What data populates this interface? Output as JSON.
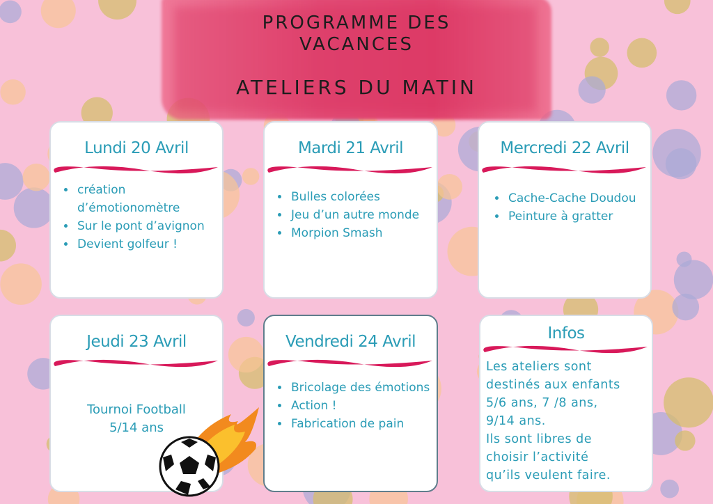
{
  "header": {
    "title_line1": "PROGRAMME DES",
    "title_line2": "VACANCES",
    "subtitle": "ATELIERS DU MATIN"
  },
  "colors": {
    "background": "#f8c1d9",
    "text": "#2a9cb6",
    "accent_wave": "#d8195a",
    "brush": "#e24a74"
  },
  "days": [
    {
      "title": "Lundi 20 Avril",
      "items": [
        "création d’émotionomètre",
        "Sur le pont d’avignon",
        "Devient golfeur !"
      ]
    },
    {
      "title": "Mardi 21 Avril",
      "items": [
        "Bulles colorées",
        "Jeu d’un autre monde",
        "Morpion Smash"
      ]
    },
    {
      "title": "Mercredi 22 Avril",
      "items": [
        "Cache-Cache Doudou",
        "Peinture à gratter"
      ]
    },
    {
      "title": "Jeudi 23 Avril",
      "text_line1": "Tournoi Football",
      "text_line2": "5/14 ans",
      "icon": "soccer-ball-fire-icon"
    },
    {
      "title": "Vendredi 24 Avril",
      "items": [
        "Bricolage des émotions",
        "Action !",
        "Fabrication de pain"
      ]
    }
  ],
  "infos": {
    "title": "Infos",
    "lines": [
      "Les ateliers sont",
      "destinés aux enfants",
      "5/6 ans, 7 /8 ans,",
      "9/14 ans.",
      "Ils sont libres de",
      "choisir l’activité",
      "qu’ils veulent faire."
    ]
  }
}
